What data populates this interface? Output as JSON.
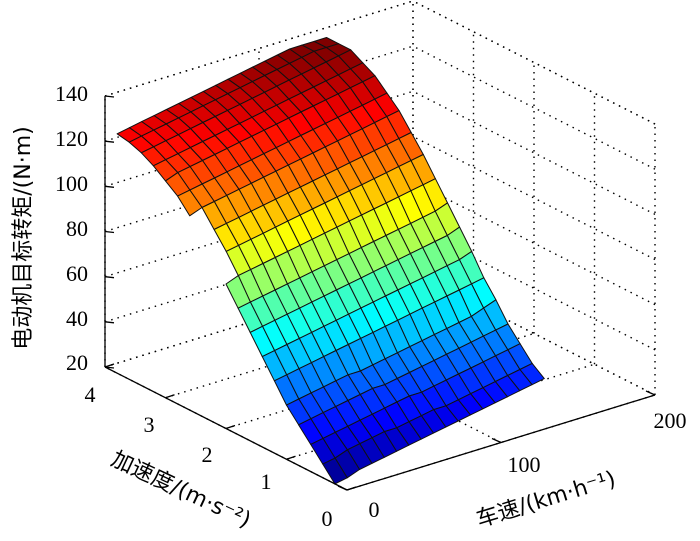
{
  "chart_data": {
    "type": "surface3d",
    "title": "",
    "xlabel": "车速/(km·h⁻¹)",
    "ylabel": "加速度/(m·s⁻²)",
    "zlabel": "电动机目标转矩/(N·m)",
    "xlim": [
      0,
      200
    ],
    "ylim": [
      0,
      4
    ],
    "zlim": [
      20,
      140
    ],
    "x_ticks": [
      "0",
      "100",
      "200"
    ],
    "y_ticks": [
      "0",
      "1",
      "2",
      "3",
      "4"
    ],
    "z_ticks": [
      "20",
      "40",
      "60",
      "80",
      "100",
      "120",
      "140"
    ],
    "colormap": "jet",
    "grid": true,
    "speed_grid": [
      0,
      8,
      16,
      24,
      32,
      40,
      48,
      56,
      64,
      72,
      80,
      88,
      96,
      104,
      112,
      120,
      128,
      136
    ],
    "accel_grid": [
      0.2,
      0.4,
      0.6,
      0.8,
      1.0,
      1.2,
      1.4,
      1.6,
      1.8,
      2.0,
      2.2,
      2.4,
      2.6,
      2.8,
      3.0,
      3.2,
      3.4,
      3.6,
      3.8
    ],
    "missing_band": {
      "speed_range": [
        0,
        4
      ],
      "accel_range": [
        2.0,
        2.6
      ]
    },
    "torque_surface": [
      [
        20,
        21,
        23,
        24,
        25,
        26,
        27,
        28,
        29,
        30,
        31,
        32,
        33,
        34,
        35,
        36,
        37,
        38
      ],
      [
        26,
        27,
        29,
        30,
        31,
        32,
        32,
        33,
        34,
        35,
        35,
        36,
        37,
        38,
        39,
        40,
        41,
        42
      ],
      [
        32,
        33,
        34,
        35,
        36,
        37,
        38,
        39,
        40,
        40,
        41,
        42,
        43,
        44,
        45,
        46,
        47,
        48
      ],
      [
        38,
        39,
        40,
        41,
        42,
        43,
        44,
        44,
        45,
        46,
        47,
        48,
        49,
        50,
        51,
        52,
        53,
        54
      ],
      [
        44,
        45,
        46,
        47,
        48,
        49,
        49,
        50,
        51,
        52,
        53,
        54,
        55,
        56,
        57,
        58,
        60,
        62
      ],
      [
        52,
        53,
        54,
        55,
        56,
        57,
        58,
        59,
        60,
        61,
        62,
        63,
        64,
        65,
        66,
        67,
        68,
        69
      ],
      [
        60,
        61,
        62,
        63,
        64,
        65,
        66,
        67,
        68,
        69,
        70,
        71,
        72,
        73,
        74,
        75,
        76,
        78
      ],
      [
        68,
        69,
        70,
        71,
        72,
        73,
        74,
        75,
        76,
        77,
        78,
        79,
        80,
        81,
        82,
        83,
        84,
        86
      ],
      [
        76,
        77,
        78,
        79,
        80,
        81,
        82,
        83,
        84,
        85,
        86,
        87,
        88,
        89,
        90,
        91,
        92,
        94
      ],
      [
        84,
        86,
        87,
        88,
        89,
        90,
        91,
        92,
        93,
        94,
        95,
        96,
        97,
        98,
        99,
        100,
        101,
        102
      ],
      [
        92,
        94,
        95,
        96,
        97,
        98,
        99,
        100,
        101,
        102,
        103,
        104,
        105,
        106,
        107,
        108,
        109,
        110
      ],
      [
        100,
        101,
        102,
        103,
        104,
        105,
        106,
        107,
        108,
        109,
        110,
        111,
        112,
        113,
        114,
        115,
        116,
        117
      ],
      [
        106,
        108,
        109,
        110,
        111,
        112,
        113,
        114,
        115,
        116,
        117,
        118,
        119,
        120,
        121,
        122,
        123,
        124
      ],
      [
        112,
        113,
        114,
        115,
        116,
        117,
        118,
        119,
        120,
        121,
        122,
        123,
        124,
        125,
        126,
        127,
        128,
        129
      ],
      [
        116,
        118,
        119,
        120,
        121,
        122,
        123,
        124,
        125,
        126,
        127,
        128,
        129,
        130,
        131,
        132,
        133,
        134
      ],
      [
        120,
        121,
        122,
        123,
        124,
        125,
        126,
        127,
        128,
        129,
        130,
        131,
        132,
        133,
        134,
        135,
        136,
        137
      ],
      [
        123,
        124,
        125,
        126,
        127,
        128,
        129,
        130,
        131,
        132,
        133,
        134,
        135,
        136,
        137,
        138,
        139,
        140
      ],
      [
        125,
        126,
        127,
        128,
        129,
        130,
        131,
        132,
        133,
        134,
        135,
        136,
        137,
        138,
        139,
        140,
        140,
        140
      ],
      [
        126,
        127,
        128,
        129,
        130,
        131,
        132,
        133,
        134,
        135,
        136,
        137,
        138,
        139,
        140,
        140,
        140,
        140
      ]
    ]
  }
}
